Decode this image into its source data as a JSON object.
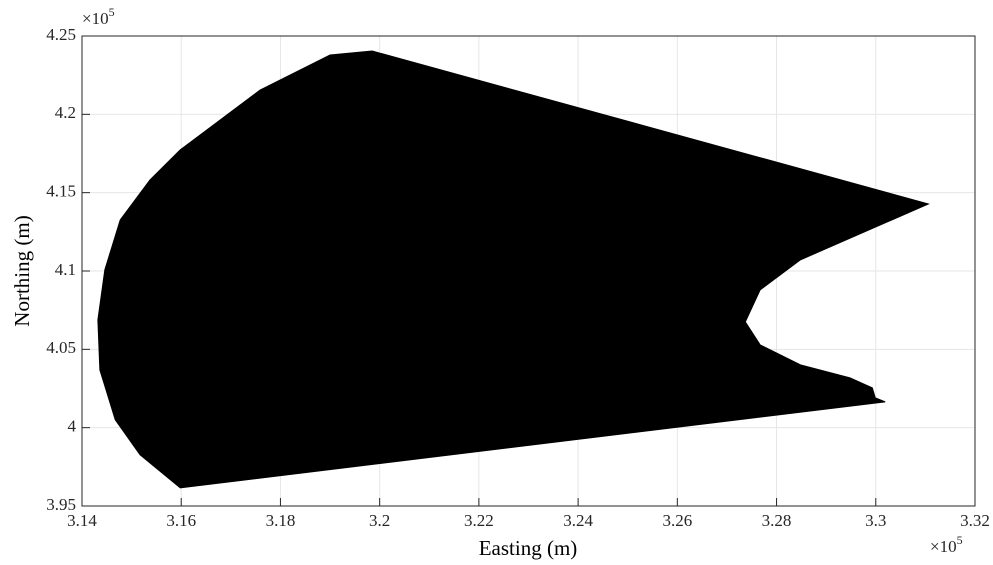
{
  "chart_data": {
    "type": "polygon",
    "xlabel": "Easting (m)",
    "ylabel": "Northing (m)",
    "x_scale": {
      "base": "×10",
      "exponent": "5"
    },
    "y_scale": {
      "base": "×10",
      "exponent": "5"
    },
    "xlim": [
      3.14,
      3.32
    ],
    "ylim": [
      3.95,
      4.25
    ],
    "xticks": [
      3.14,
      3.16,
      3.18,
      3.2,
      3.22,
      3.24,
      3.26,
      3.28,
      3.3,
      3.32
    ],
    "yticks": [
      3.95,
      4,
      4.05,
      4.1,
      4.15,
      4.2,
      4.25
    ],
    "grid": true,
    "series": [
      {
        "color": "#000000",
        "x": [
          3.1985,
          3.3106,
          3.2848,
          3.2767,
          3.2737,
          3.2767,
          3.2848,
          3.2948,
          3.2993,
          3.2999,
          3.3019,
          3.1598,
          3.1517,
          3.1467,
          3.1436,
          3.1432,
          3.1446,
          3.1477,
          3.1537,
          3.1598,
          3.1759,
          3.19
        ],
        "values": [
          4.2404,
          4.1428,
          4.1071,
          4.088,
          4.0675,
          4.0528,
          4.0401,
          4.0318,
          4.0254,
          4.019,
          4.0165,
          3.9616,
          3.9827,
          4.005,
          4.0369,
          4.0688,
          4.1007,
          4.1326,
          4.1581,
          4.1773,
          4.2155,
          4.2379
        ]
      }
    ]
  }
}
